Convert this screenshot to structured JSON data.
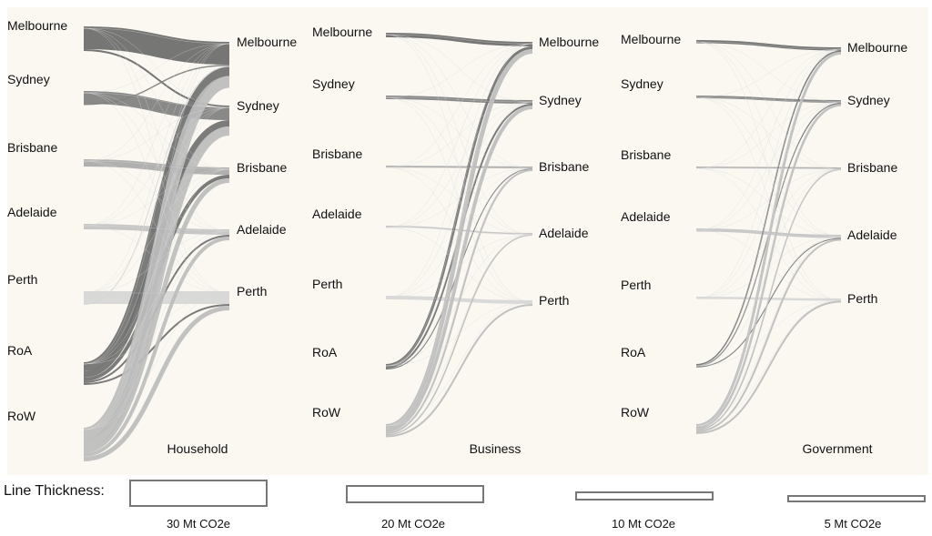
{
  "sources": [
    "Melbourne",
    "Sydney",
    "Brisbane",
    "Adelaide",
    "Perth",
    "RoA",
    "RoW"
  ],
  "destinations": [
    "Melbourne",
    "Sydney",
    "Brisbane",
    "Adelaide",
    "Perth"
  ],
  "panels": [
    {
      "title": "Household",
      "flows": [
        {
          "from": "Melbourne",
          "to": "Melbourne",
          "value": 25
        },
        {
          "from": "Melbourne",
          "to": "Sydney",
          "value": 2
        },
        {
          "from": "Sydney",
          "to": "Sydney",
          "value": 14
        },
        {
          "from": "Sydney",
          "to": "Melbourne",
          "value": 1.5
        },
        {
          "from": "Brisbane",
          "to": "Brisbane",
          "value": 8
        },
        {
          "from": "Adelaide",
          "to": "Adelaide",
          "value": 6
        },
        {
          "from": "Perth",
          "to": "Perth",
          "value": 14
        },
        {
          "from": "Perth",
          "to": "Melbourne",
          "value": 1
        },
        {
          "from": "RoA",
          "to": "Melbourne",
          "value": 10
        },
        {
          "from": "RoA",
          "to": "Sydney",
          "value": 7
        },
        {
          "from": "RoA",
          "to": "Brisbane",
          "value": 4
        },
        {
          "from": "RoA",
          "to": "Adelaide",
          "value": 2
        },
        {
          "from": "RoA",
          "to": "Perth",
          "value": 2
        },
        {
          "from": "RoW",
          "to": "Melbourne",
          "value": 13
        },
        {
          "from": "RoW",
          "to": "Sydney",
          "value": 10
        },
        {
          "from": "RoW",
          "to": "Brisbane",
          "value": 5
        },
        {
          "from": "RoW",
          "to": "Adelaide",
          "value": 4
        },
        {
          "from": "RoW",
          "to": "Perth",
          "value": 5
        }
      ]
    },
    {
      "title": "Business",
      "flows": [
        {
          "from": "Melbourne",
          "to": "Melbourne",
          "value": 5
        },
        {
          "from": "Sydney",
          "to": "Sydney",
          "value": 4
        },
        {
          "from": "Brisbane",
          "to": "Brisbane",
          "value": 2
        },
        {
          "from": "Adelaide",
          "to": "Adelaide",
          "value": 1.5
        },
        {
          "from": "Perth",
          "to": "Perth",
          "value": 4
        },
        {
          "from": "RoA",
          "to": "Melbourne",
          "value": 3
        },
        {
          "from": "RoA",
          "to": "Sydney",
          "value": 2
        },
        {
          "from": "RoA",
          "to": "Brisbane",
          "value": 1
        },
        {
          "from": "RoW",
          "to": "Melbourne",
          "value": 5
        },
        {
          "from": "RoW",
          "to": "Sydney",
          "value": 4
        },
        {
          "from": "RoW",
          "to": "Brisbane",
          "value": 2
        },
        {
          "from": "RoW",
          "to": "Adelaide",
          "value": 1.5
        },
        {
          "from": "RoW",
          "to": "Perth",
          "value": 2
        }
      ]
    },
    {
      "title": "Government",
      "flows": [
        {
          "from": "Melbourne",
          "to": "Melbourne",
          "value": 3.5
        },
        {
          "from": "Sydney",
          "to": "Sydney",
          "value": 3
        },
        {
          "from": "Brisbane",
          "to": "Brisbane",
          "value": 1.5
        },
        {
          "from": "Adelaide",
          "to": "Adelaide",
          "value": 3.5
        },
        {
          "from": "Perth",
          "to": "Perth",
          "value": 2.5
        },
        {
          "from": "RoA",
          "to": "Melbourne",
          "value": 1.5
        },
        {
          "from": "RoA",
          "to": "Sydney",
          "value": 1.2
        },
        {
          "from": "RoA",
          "to": "Adelaide",
          "value": 1
        },
        {
          "from": "RoW",
          "to": "Melbourne",
          "value": 3
        },
        {
          "from": "RoW",
          "to": "Sydney",
          "value": 2.5
        },
        {
          "from": "RoW",
          "to": "Brisbane",
          "value": 1.5
        },
        {
          "from": "RoW",
          "to": "Adelaide",
          "value": 2
        },
        {
          "from": "RoW",
          "to": "Perth",
          "value": 2
        }
      ]
    }
  ],
  "colors": {
    "background": "#faf8f1",
    "Melbourne": "#6a6a6a",
    "Sydney": "#7f7f7f",
    "Brisbane": "#a9a9a9",
    "Adelaide": "#c2c2c2",
    "Perth": "#d6d6d6",
    "RoA": "#707070",
    "RoW": "#bcbcbc"
  },
  "legend": {
    "title": "Line Thickness:",
    "items": [
      {
        "label": "30 Mt CO2e",
        "value": 30
      },
      {
        "label": "20 Mt CO2e",
        "value": 20
      },
      {
        "label": "10 Mt CO2e",
        "value": 10
      },
      {
        "label": "5 Mt CO2e",
        "value": 5
      }
    ]
  }
}
